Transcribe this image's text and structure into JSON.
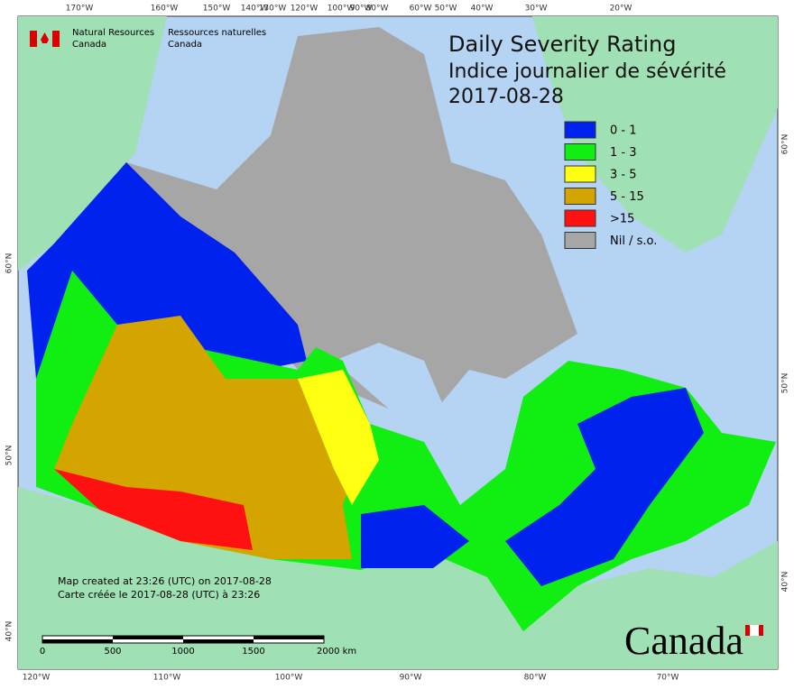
{
  "header": {
    "agency_en": "Natural Resources",
    "agency_en_2": "Canada",
    "agency_fr": "Ressources naturelles",
    "agency_fr_2": "Canada"
  },
  "title": {
    "line1": "Daily Severity Rating",
    "line2": "Indice journalier de sévérité",
    "date": "2017-08-28"
  },
  "legend": [
    {
      "label": "0 - 1",
      "color": "#0022ee"
    },
    {
      "label": "1 - 3",
      "color": "#11ee11"
    },
    {
      "label": "3 - 5",
      "color": "#ffff11"
    },
    {
      "label": "5 - 15",
      "color": "#d4a400"
    },
    {
      "label": ">15",
      "color": "#ff1111"
    },
    {
      "label": "Nil / s.o.",
      "color": "#a6a6a6"
    }
  ],
  "graticule": {
    "top": [
      "170°W",
      "160°W",
      "150°W",
      "140°W",
      "130°W",
      "120°W",
      "100°W",
      "90°W",
      "80°W",
      "60°W",
      "50°W",
      "40°W",
      "30°W",
      "20°W"
    ],
    "bottom": [
      "120°W",
      "110°W",
      "100°W",
      "90°W",
      "80°W",
      "70°W"
    ],
    "left": [
      "60°N",
      "50°N",
      "40°N"
    ],
    "right": [
      "60°N",
      "50°N",
      "40°N"
    ]
  },
  "footer": {
    "created_en": "Map created at 23:26 (UTC) on 2017-08-28",
    "created_fr": "Carte créée le 2017-08-28 (UTC) à 23:26",
    "scale": [
      "0",
      "500",
      "1000",
      "1500",
      "2000 km"
    ],
    "wordmark": "Canada"
  }
}
